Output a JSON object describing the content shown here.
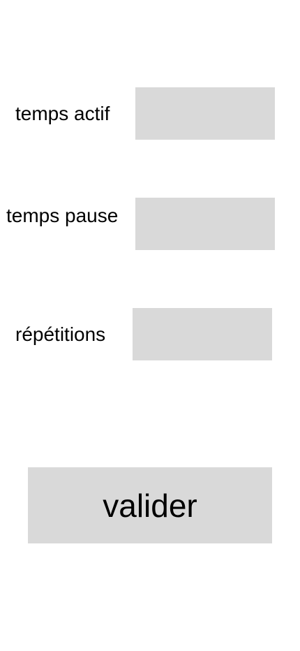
{
  "form": {
    "active_time": {
      "label": "temps actif",
      "value": "",
      "placeholder": ""
    },
    "pause_time": {
      "label": "temps pause",
      "value": "",
      "placeholder": ""
    },
    "repetitions": {
      "label": "répétitions",
      "value": "",
      "placeholder": ""
    },
    "submit_label": "valider"
  },
  "colors": {
    "background": "#ffffff",
    "field_fill": "#d9d9d9",
    "text": "#000000"
  }
}
